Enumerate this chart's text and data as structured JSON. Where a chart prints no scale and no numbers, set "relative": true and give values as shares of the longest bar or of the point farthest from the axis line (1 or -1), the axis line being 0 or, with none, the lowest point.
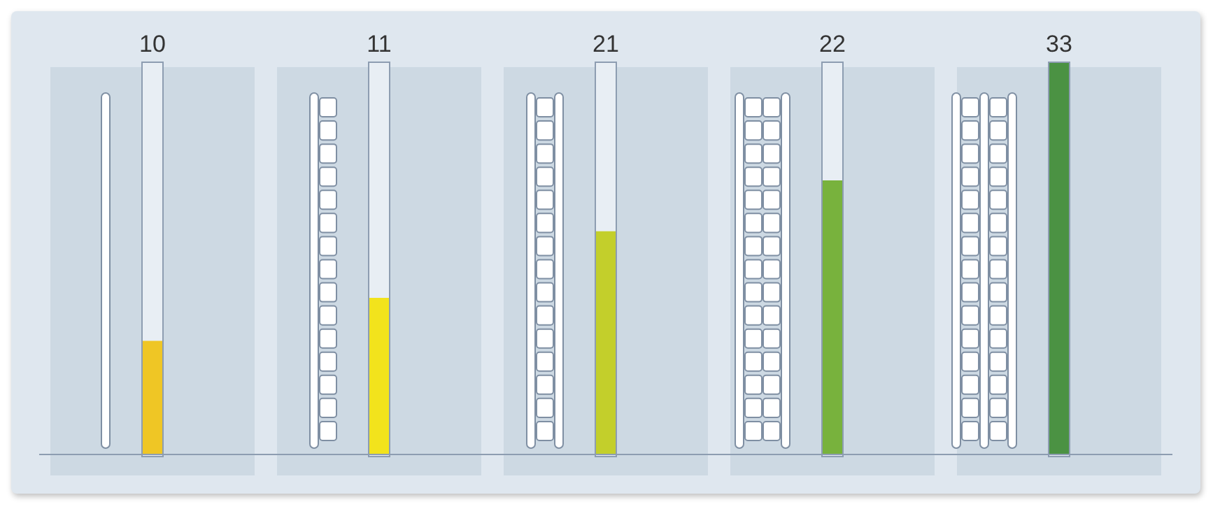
{
  "chart_data": {
    "type": "bar",
    "relative": true,
    "categories": [
      "10",
      "11",
      "21",
      "22",
      "33"
    ],
    "values": [
      0.29,
      0.4,
      0.57,
      0.7,
      1
    ],
    "colors": [
      "#efc625",
      "#f2e31c",
      "#c3cf2b",
      "#78b23d",
      "#4b9243"
    ]
  }
}
